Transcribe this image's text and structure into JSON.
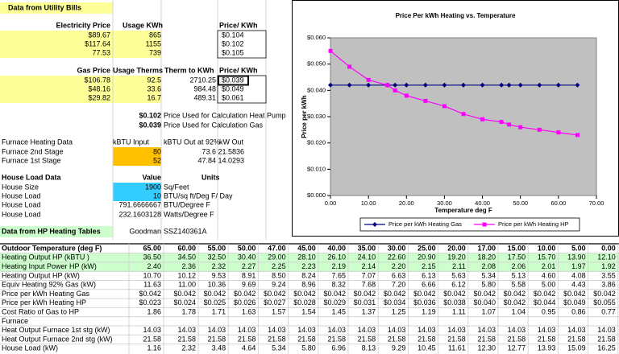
{
  "utility": {
    "title": "Data from Utility Bills",
    "electricity": {
      "header": [
        "Electricity Price",
        "Usage KWh",
        "Price/ KWh"
      ],
      "rows": [
        [
          "$89.67",
          "865",
          "$0.104"
        ],
        [
          "$117.64",
          "1155",
          "$0.102"
        ],
        [
          "77.53",
          "739",
          "$0.105"
        ]
      ]
    },
    "gas": {
      "header": [
        "Gas Price",
        "Usage Therms",
        "Therm to KWh",
        "Price/ KWh"
      ],
      "rows": [
        [
          "$106.78",
          "92.5",
          "2710.25",
          "$0.039"
        ],
        [
          "$48.16",
          "33.6",
          "984.48",
          "$0.049"
        ],
        [
          "$29.82",
          "16.7",
          "489.31",
          "$0.061"
        ]
      ]
    },
    "prices_used": [
      [
        "$0.102",
        "Price Used for Calculation Heat Pump"
      ],
      [
        "$0.039",
        "Price Used for Calculation Gas"
      ]
    ]
  },
  "furnace": {
    "header": [
      "Furnace Heating  Data",
      "kBTU Input",
      "kBTU Out at 92%",
      "kW Out"
    ],
    "rows": [
      [
        "Furnace 2nd Stage",
        "80",
        "73.6",
        "21.5836"
      ],
      [
        "Furnace 1st Stage",
        "52",
        "47.84",
        "14.0293"
      ]
    ]
  },
  "house": {
    "header": [
      "House Load Data",
      "Value",
      "Units"
    ],
    "rows": [
      [
        "House Size",
        "1900",
        "Sq/Feet"
      ],
      [
        "House Load",
        "10",
        "BTU/sq ft/Deg F/ Day"
      ],
      [
        "House Load",
        "791.6666667",
        "BTU/Degree F"
      ],
      [
        "House Load",
        "232.1603128",
        "Watts/Degree F"
      ]
    ]
  },
  "hp_tables": [
    "Data from HP Heating Tables",
    "Goodman",
    "SSZ140361A"
  ],
  "table": {
    "header": [
      "Outdoor Temperature (deg F)",
      "65.00",
      "60.00",
      "55.00",
      "50.00",
      "47.00",
      "45.00",
      "40.00",
      "35.00",
      "30.00",
      "25.00",
      "20.00",
      "17.00",
      "15.00",
      "10.00",
      "5.00",
      "0.00"
    ],
    "rows": [
      [
        "Heating Output HP (kBTU )",
        "36.50",
        "34.50",
        "32.50",
        "30.40",
        "29.00",
        "28.10",
        "26.10",
        "24.10",
        "22.60",
        "20.90",
        "19.20",
        "18.20",
        "17.50",
        "15.70",
        "13.90",
        "12.10"
      ],
      [
        "Heating Input Power HP (kW)",
        "2.40",
        "2.36",
        "2.32",
        "2.27",
        "2.25",
        "2.23",
        "2.19",
        "2.14",
        "2.20",
        "2.15",
        "2.11",
        "2.08",
        "2.06",
        "2.01",
        "1.97",
        "1.92"
      ],
      [
        "Heating Output HP (kW)",
        "10.70",
        "10.12",
        "9.53",
        "8.91",
        "8.50",
        "8.24",
        "7.65",
        "7.07",
        "6.63",
        "6.13",
        "5.63",
        "5.34",
        "5.13",
        "4.60",
        "4.08",
        "3.55"
      ],
      [
        "Equiv Heating 92% Gas (kW)",
        "11.63",
        "11.00",
        "10.36",
        "9.69",
        "9.24",
        "8.96",
        "8.32",
        "7.68",
        "7.20",
        "6.66",
        "6.12",
        "5.80",
        "5.58",
        "5.00",
        "4.43",
        "3.86"
      ],
      [
        "Price per kWh Heating Gas",
        "$0.042",
        "$0.042",
        "$0.042",
        "$0.042",
        "$0.042",
        "$0.042",
        "$0.042",
        "$0.042",
        "$0.042",
        "$0.042",
        "$0.042",
        "$0.042",
        "$0.042",
        "$0.042",
        "$0.042",
        "$0.042"
      ],
      [
        "Price per kWh Heating HP",
        "$0.023",
        "$0.024",
        "$0.025",
        "$0.026",
        "$0.027",
        "$0.028",
        "$0.029",
        "$0.031",
        "$0.034",
        "$0.036",
        "$0.038",
        "$0.040",
        "$0.042",
        "$0.044",
        "$0.049",
        "$0.055"
      ],
      [
        "Cost Ratio of Gas to HP",
        "1.86",
        "1.78",
        "1.71",
        "1.63",
        "1.57",
        "1.54",
        "1.45",
        "1.37",
        "1.25",
        "1.19",
        "1.11",
        "1.07",
        "1.04",
        "0.95",
        "0.86",
        "0.77"
      ],
      [
        "Furnace"
      ],
      [
        "Heat Output Furnace 1st stg (kW)",
        "14.03",
        "14.03",
        "14.03",
        "14.03",
        "14.03",
        "14.03",
        "14.03",
        "14.03",
        "14.03",
        "14.03",
        "14.03",
        "14.03",
        "14.03",
        "14.03",
        "14.03",
        "14.03"
      ],
      [
        "Heat Output Furnace 2nd stg (kW)",
        "21.58",
        "21.58",
        "21.58",
        "21.58",
        "21.58",
        "21.58",
        "21.58",
        "21.58",
        "21.58",
        "21.58",
        "21.58",
        "21.58",
        "21.58",
        "21.58",
        "21.58",
        "21.58"
      ],
      [
        "House Load (kW)",
        "1.16",
        "2.32",
        "3.48",
        "4.64",
        "5.34",
        "5.80",
        "6.96",
        "8.13",
        "9.29",
        "10.45",
        "11.61",
        "12.30",
        "12.77",
        "13.93",
        "15.09",
        "16.25"
      ]
    ]
  },
  "chart_data": {
    "type": "line",
    "title": "Price Per kWh Heating vs. Temperature",
    "x_label": "Temperature deg F",
    "y_label": "Price per kWh",
    "x": [
      65,
      60,
      55,
      50,
      47,
      45,
      40,
      35,
      30,
      25,
      20,
      17,
      15,
      10,
      5,
      0
    ],
    "series": [
      {
        "name": "Price per kWh Heating Gas",
        "color": "#000080",
        "marker": "diamond",
        "values": [
          0.042,
          0.042,
          0.042,
          0.042,
          0.042,
          0.042,
          0.042,
          0.042,
          0.042,
          0.042,
          0.042,
          0.042,
          0.042,
          0.042,
          0.042,
          0.042
        ]
      },
      {
        "name": "Price per kWh Heating HP",
        "color": "#ff00ff",
        "marker": "square",
        "values": [
          0.023,
          0.024,
          0.025,
          0.026,
          0.027,
          0.028,
          0.029,
          0.031,
          0.034,
          0.036,
          0.038,
          0.04,
          0.042,
          0.044,
          0.049,
          0.055
        ]
      }
    ],
    "xlim": [
      0,
      70
    ],
    "xticks": [
      {
        "value": 0,
        "label": "0.00"
      },
      {
        "value": 10,
        "label": "10.00"
      },
      {
        "value": 20,
        "label": "20.00"
      },
      {
        "value": 30,
        "label": "30.00"
      },
      {
        "value": 40,
        "label": "40.00"
      },
      {
        "value": 50,
        "label": "50.00"
      },
      {
        "value": 60,
        "label": "60.00"
      },
      {
        "value": 70,
        "label": "70.00"
      }
    ],
    "ylim": [
      0,
      0.06
    ],
    "yticks": [
      {
        "value": 0,
        "label": "$0.000"
      },
      {
        "value": 0.01,
        "label": "$0.010"
      },
      {
        "value": 0.02,
        "label": "$0.020"
      },
      {
        "value": 0.03,
        "label": "$0.030"
      },
      {
        "value": 0.04,
        "label": "$0.040"
      },
      {
        "value": 0.05,
        "label": "$0.050"
      },
      {
        "value": 0.06,
        "label": "$0.060"
      }
    ],
    "legend": "bottom"
  }
}
